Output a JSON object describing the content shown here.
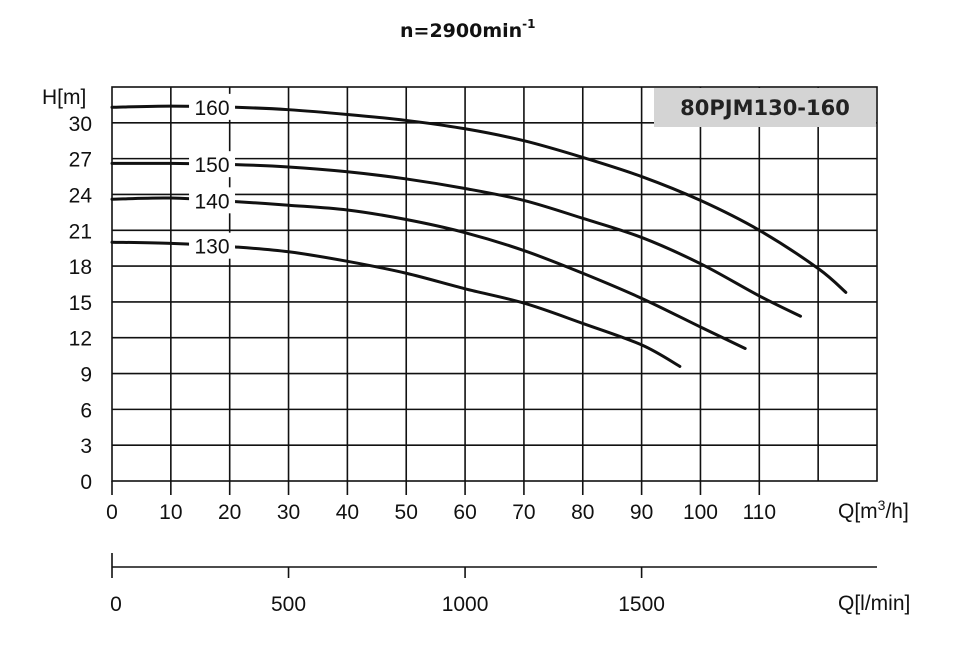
{
  "chart_data": {
    "type": "line",
    "title": "n=2900min",
    "title_superscript": "-1",
    "model_label": "80PJM130-160",
    "ylabel": "H[m]",
    "xlabel": "Q[m3/h]",
    "xlabel_parts": {
      "prefix": "Q[m",
      "sup": "3",
      "suffix": "/h]"
    },
    "secondary_xlabel": "Q[l/min]",
    "ylim": [
      0,
      33
    ],
    "xlim": [
      0,
      130
    ],
    "y_ticks": [
      0,
      3,
      6,
      9,
      12,
      15,
      18,
      21,
      24,
      27,
      30
    ],
    "x_ticks": [
      0,
      10,
      20,
      30,
      40,
      50,
      60,
      70,
      80,
      90,
      100,
      110
    ],
    "x_grid": [
      0,
      10,
      20,
      30,
      40,
      50,
      60,
      70,
      80,
      90,
      100,
      110,
      120,
      130
    ],
    "secondary_x_ticks": [
      0,
      500,
      1000,
      1500
    ],
    "secondary_xlim": [
      0,
      2166.7
    ],
    "grid": true,
    "legend_position": "inline labels at left of curves",
    "series": [
      {
        "name": "160",
        "label_at_q": 17,
        "x": [
          0,
          10,
          21,
          30,
          40,
          50,
          60,
          70,
          80,
          90,
          100,
          110,
          120,
          124.7
        ],
        "values": [
          31.3,
          31.4,
          31.3,
          31.1,
          30.7,
          30.2,
          29.5,
          28.5,
          27.1,
          25.5,
          23.5,
          21.0,
          17.8,
          15.8
        ]
      },
      {
        "name": "150",
        "label_at_q": 17,
        "x": [
          0,
          10,
          21,
          30,
          40,
          50,
          60,
          70,
          80,
          90,
          100,
          110,
          117
        ],
        "values": [
          26.6,
          26.6,
          26.5,
          26.3,
          25.9,
          25.3,
          24.5,
          23.5,
          22.0,
          20.4,
          18.2,
          15.5,
          13.8
        ]
      },
      {
        "name": "140",
        "label_at_q": 17,
        "x": [
          0,
          10,
          21,
          30,
          40,
          50,
          60,
          70,
          80,
          90,
          100,
          107.6
        ],
        "values": [
          23.6,
          23.7,
          23.4,
          23.1,
          22.7,
          21.9,
          20.8,
          19.3,
          17.4,
          15.3,
          12.9,
          11.1
        ]
      },
      {
        "name": "130",
        "label_at_q": 17,
        "x": [
          0,
          10,
          21,
          30,
          40,
          50,
          60,
          70,
          80,
          90,
          96.5
        ],
        "values": [
          20.0,
          19.9,
          19.6,
          19.2,
          18.4,
          17.4,
          16.1,
          14.9,
          13.2,
          11.4,
          9.6
        ]
      }
    ]
  }
}
